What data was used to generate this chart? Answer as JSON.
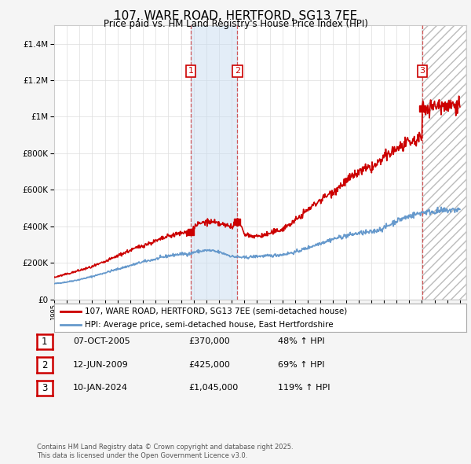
{
  "title": "107, WARE ROAD, HERTFORD, SG13 7EE",
  "subtitle": "Price paid vs. HM Land Registry's House Price Index (HPI)",
  "legend_line1": "107, WARE ROAD, HERTFORD, SG13 7EE (semi-detached house)",
  "legend_line2": "HPI: Average price, semi-detached house, East Hertfordshire",
  "footer1": "Contains HM Land Registry data © Crown copyright and database right 2025.",
  "footer2": "This data is licensed under the Open Government Licence v3.0.",
  "sale_color": "#cc0000",
  "hpi_color": "#6699cc",
  "purchase_dates": [
    2005.77,
    2009.45,
    2024.03
  ],
  "purchase_prices": [
    370000,
    425000,
    1045000
  ],
  "purchase_labels": [
    "1",
    "2",
    "3"
  ],
  "table_rows": [
    [
      "1",
      "07-OCT-2005",
      "£370,000",
      "48% ↑ HPI"
    ],
    [
      "2",
      "12-JUN-2009",
      "£425,000",
      "69% ↑ HPI"
    ],
    [
      "3",
      "10-JAN-2024",
      "£1,045,000",
      "119% ↑ HPI"
    ]
  ],
  "vline_dates": [
    2005.77,
    2009.45,
    2024.03
  ],
  "shade_regions": [
    [
      2005.77,
      2009.45
    ]
  ],
  "hatch_regions": [
    [
      2024.03,
      2027.5
    ]
  ],
  "ylim": [
    0,
    1500000
  ],
  "yticks": [
    0,
    200000,
    400000,
    600000,
    800000,
    1000000,
    1200000,
    1400000
  ],
  "xlim": [
    1995,
    2027.5
  ],
  "background_color": "#f5f5f5",
  "plot_bg_color": "#ffffff"
}
